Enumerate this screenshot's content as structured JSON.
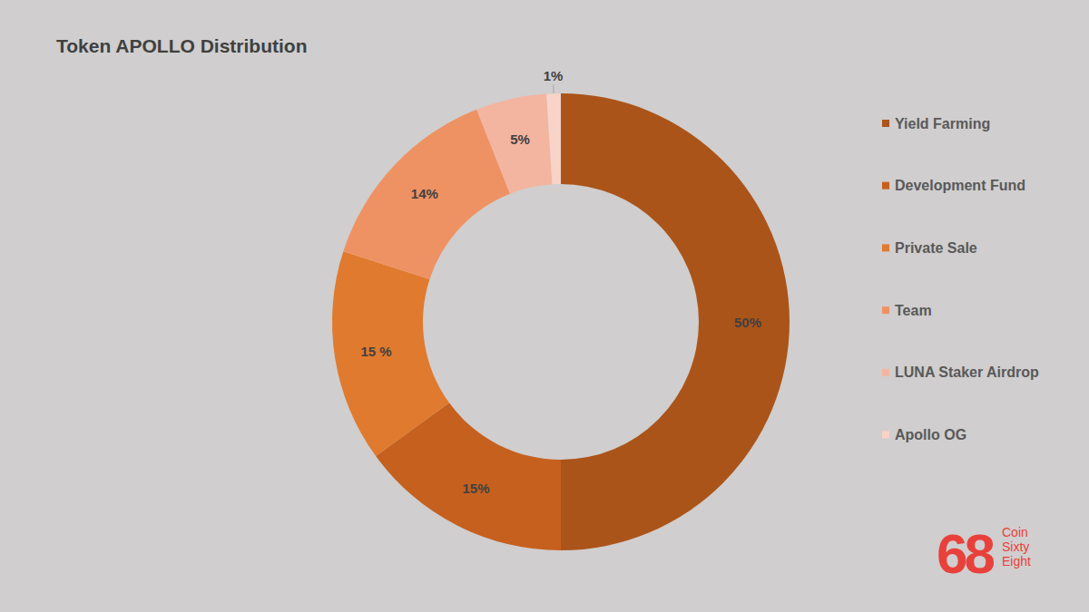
{
  "chart_data": {
    "type": "pie",
    "title": "Token APOLLO Distribution",
    "categories": [
      "Yield Farming",
      "Development Fund",
      "Private Sale",
      "Team",
      "LUNA Staker Airdrop",
      "Apollo OG"
    ],
    "values": [
      50,
      15,
      15,
      14,
      5,
      1
    ],
    "value_labels": [
      "50%",
      "15%",
      "15 %",
      "14%",
      "5%",
      "1%"
    ],
    "colors": [
      "#ab5419",
      "#c6601f",
      "#e07a2e",
      "#ef9263",
      "#f4b5a0",
      "#f8d3c8"
    ],
    "data_labels": true,
    "legend": "right",
    "annotations": [
      "68",
      "Coin",
      "Sixty",
      "Eight"
    ]
  }
}
